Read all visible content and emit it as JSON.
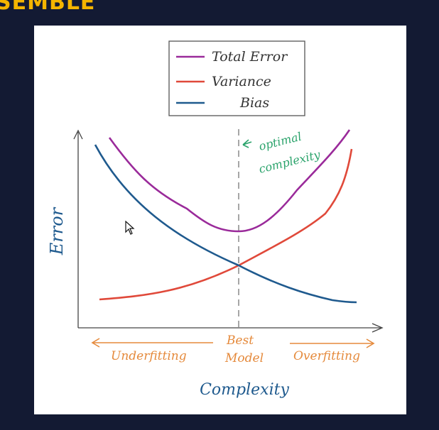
{
  "slide": {
    "title": "SEMBLE"
  },
  "legend": [
    {
      "label": "Total Error",
      "color": "#9a2a9a"
    },
    {
      "label": "Variance",
      "color": "#e0493a"
    },
    {
      "label": "Bias",
      "color": "#1f5a8e"
    }
  ],
  "annotation": {
    "line1": "optimal",
    "line2": "complexity",
    "color": "#2aa36b"
  },
  "axes": {
    "ylabel": "Error",
    "xlabel": "Complexity",
    "axis_label_color": "#1f5a8e"
  },
  "regions": {
    "left": "Underfitting",
    "middle_line1": "Best",
    "middle_line2": "Model",
    "right": "Overfitting",
    "color": "#e58a3c"
  },
  "icons": {
    "cursor": "mouse-pointer-icon"
  }
}
